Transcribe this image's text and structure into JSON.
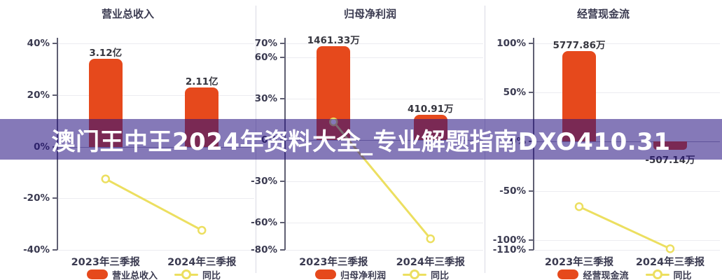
{
  "banner": {
    "text": "澳门王中王2024年资料大全_专业解题指南DXO410.31"
  },
  "colors": {
    "bar": "#e6491c",
    "line": "#ecdf60",
    "marker_fill": "#ffffff",
    "grid": "#ececf0",
    "axis": "#5f5f72",
    "text_dark": "#3a3a50",
    "bar_label": "#36363f",
    "banner_overlay": "rgba(37,16,128,0.56)",
    "banner_tint_over_white": "#8579b8",
    "bar_under_banner_tint": "#7a2a52"
  },
  "chart_data": [
    {
      "type": "combo-bar-line",
      "title": "营业总收入",
      "categories": [
        "2023年三季报",
        "2024年三季报"
      ],
      "bar_series": {
        "name": "营业总收入",
        "unit": "亿",
        "labels": [
          "3.12亿",
          "2.11亿"
        ],
        "values": [
          3.12,
          2.11
        ],
        "display_pct": [
          34,
          23
        ]
      },
      "line_series": {
        "name": "同比",
        "unit": "%",
        "values_pct": [
          -12.5,
          -32.4
        ],
        "marker": "hollow-circle"
      },
      "yaxis": {
        "unit": "%",
        "min": -40,
        "max": 40,
        "ticks": [
          40,
          20,
          0,
          -20,
          -40
        ],
        "grid": true
      },
      "legend_position": "bottom"
    },
    {
      "type": "combo-bar-line",
      "title": "归母净利润",
      "categories": [
        "2023年三季报",
        "2024年三季报"
      ],
      "bar_series": {
        "name": "归母净利润",
        "unit": "万",
        "labels": [
          "1461.33万",
          "410.91万"
        ],
        "values": [
          1461.33,
          410.91
        ],
        "display_pct": [
          68,
          18
        ]
      },
      "line_series": {
        "name": "同比",
        "unit": "%",
        "values_pct": [
          13,
          -71.9
        ],
        "marker": "hollow-circle",
        "first_point_occluded_by_banner": true
      },
      "yaxis": {
        "unit": "%",
        "min": -80,
        "max": 70,
        "ticks": [
          70,
          60,
          30,
          0,
          -30,
          -60,
          -80
        ],
        "grid": true
      },
      "legend_position": "bottom"
    },
    {
      "type": "combo-bar-line",
      "title": "经营现金流",
      "categories": [
        "2023年三季报",
        "2024年三季报"
      ],
      "bar_series": {
        "name": "经营现金流",
        "unit": "万",
        "labels": [
          "5777.86万",
          "-507.14万"
        ],
        "values": [
          5777.86,
          -507.14
        ],
        "display_pct": [
          92,
          -8.1
        ]
      },
      "line_series": {
        "name": "同比",
        "unit": "%",
        "values_pct": [
          -66,
          -108.8
        ],
        "marker": "hollow-circle"
      },
      "yaxis": {
        "unit": "%",
        "min": -110,
        "max": 100,
        "ticks": [
          100,
          50,
          0,
          -50,
          -100,
          -110
        ],
        "grid": true
      },
      "legend_position": "bottom"
    }
  ]
}
